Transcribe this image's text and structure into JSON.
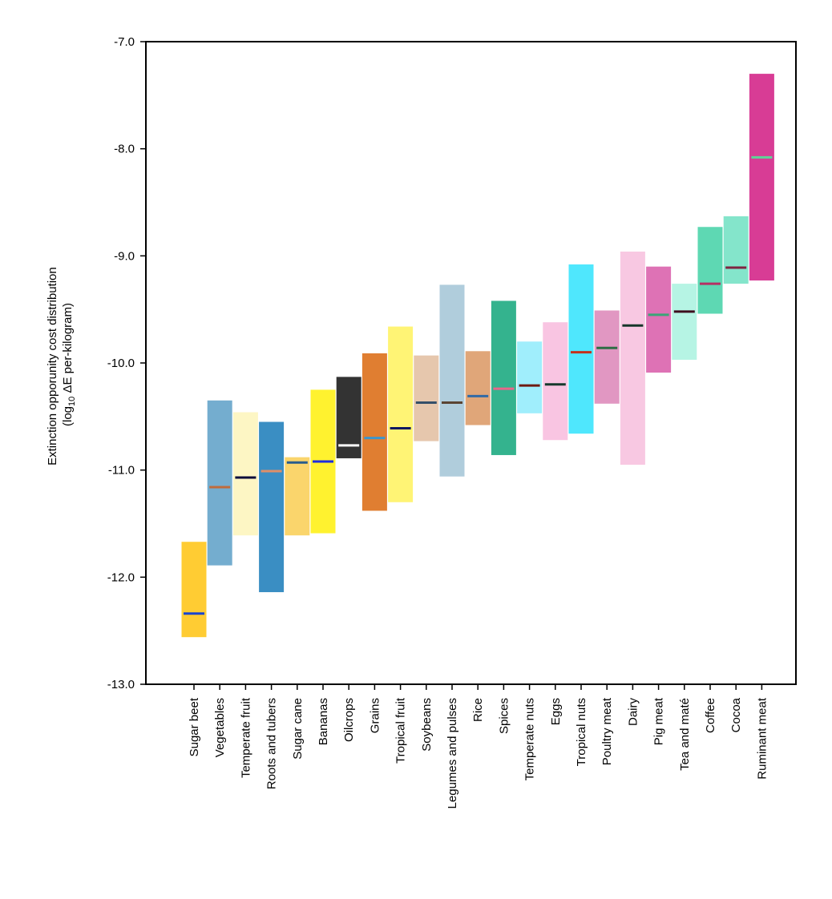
{
  "chart_data": {
    "type": "bar",
    "title": "",
    "ylabel_line1": "Extinction opporunity cost distribution",
    "ylabel_line2_prefix": "(log",
    "ylabel_line2_sub": "10",
    "ylabel_line2_suffix": " ΔE per-kilogram)",
    "xlabel": "",
    "ylim": [
      -13.0,
      -7.0
    ],
    "yticks": [
      -13.0,
      -12.0,
      -11.0,
      -10.0,
      -9.0,
      -8.0,
      -7.0
    ],
    "ytick_labels": [
      "-13.0",
      "-12.0",
      "-11.0",
      "-10.0",
      "-9.0",
      "-8.0",
      "-7.0"
    ],
    "grid": false,
    "categories": [
      "Sugar beet",
      "Vegetables",
      "Temperate fruit",
      "Roots and tubers",
      "Sugar cane",
      "Bananas",
      "Oilcrops",
      "Grains",
      "Tropical fruit",
      "Soybeans",
      "Legumes and pulses",
      "Rice",
      "Spices",
      "Temperate nuts",
      "Eggs",
      "Tropical nuts",
      "Poultry meat",
      "Dairy",
      "Pig meat",
      "Tea and maté",
      "Coffee",
      "Cocoa",
      "Ruminant meat"
    ],
    "low": [
      -12.56,
      -11.89,
      -11.61,
      -12.14,
      -11.61,
      -11.59,
      -10.89,
      -11.38,
      -11.3,
      -10.73,
      -11.06,
      -10.58,
      -10.86,
      -10.47,
      -10.72,
      -10.66,
      -10.38,
      -10.95,
      -10.09,
      -9.97,
      -9.54,
      -9.26,
      -9.23
    ],
    "high": [
      -11.67,
      -10.35,
      -10.46,
      -10.55,
      -10.88,
      -10.25,
      -10.13,
      -9.91,
      -9.66,
      -9.93,
      -9.27,
      -9.89,
      -9.42,
      -9.8,
      -9.62,
      -9.08,
      -9.51,
      -8.96,
      -9.1,
      -9.26,
      -8.73,
      -8.63,
      -7.3
    ],
    "median": [
      -12.34,
      -11.16,
      -11.07,
      -11.01,
      -10.93,
      -10.92,
      -10.77,
      -10.7,
      -10.61,
      -10.37,
      -10.37,
      -10.31,
      -10.24,
      -10.21,
      -10.2,
      -9.9,
      -9.86,
      -9.65,
      -9.55,
      -9.52,
      -9.26,
      -9.11,
      -8.08
    ],
    "box_colors": [
      "#ffcc33",
      "#74adcf",
      "#fdf6c4",
      "#3a8ec3",
      "#fad56c",
      "#fff22f",
      "#333333",
      "#e07e31",
      "#fff475",
      "#e6c7ad",
      "#b0cddc",
      "#e0a679",
      "#34b38e",
      "#a0eefc",
      "#f9c5e2",
      "#4fe7fd",
      "#e197c2",
      "#f8c8e2",
      "#de72b5",
      "#b6f4e4",
      "#5ed8b3",
      "#84e5cb",
      "#d83c95"
    ],
    "median_colors": [
      "#1844d1",
      "#bf6b3c",
      "#0c0c3a",
      "#de8f69",
      "#285c8c",
      "#1d2ce0",
      "#ffffff",
      "#3b96cd",
      "#0d1760",
      "#344f69",
      "#5a4433",
      "#326aa6",
      "#e9668a",
      "#6e1a11",
      "#173a2d",
      "#c4311b",
      "#2e6d44",
      "#17362a",
      "#3aa577",
      "#3e0e1e",
      "#b62e63",
      "#7e2441",
      "#5fd398"
    ]
  }
}
